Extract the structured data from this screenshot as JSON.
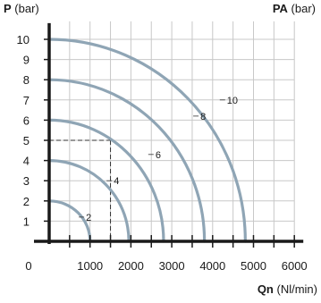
{
  "chart_data": {
    "type": "line",
    "y_axis": {
      "symbol": "P",
      "unit": "(bar)",
      "range": [
        0,
        10.8
      ],
      "ticks": [
        1,
        2,
        3,
        4,
        5,
        6,
        7,
        8,
        9,
        10
      ]
    },
    "y_axis_right": {
      "symbol": "PA",
      "unit": "(bar)"
    },
    "x_axis": {
      "symbol": "Qn",
      "unit": "(Nl/min)",
      "range": [
        0,
        6000
      ],
      "ticks": [
        0,
        1000,
        2000,
        3000,
        4000,
        5000,
        6000
      ]
    },
    "grid": true,
    "series": [
      {
        "name": "2",
        "pressure": 2,
        "max_flow": 1000
      },
      {
        "name": "4",
        "pressure": 4,
        "max_flow": 1950
      },
      {
        "name": "6",
        "pressure": 6,
        "max_flow": 2800
      },
      {
        "name": "8",
        "pressure": 8,
        "max_flow": 3800
      },
      {
        "name": "10",
        "pressure": 10,
        "max_flow": 4800
      }
    ],
    "series_label_points": [
      {
        "name": "2",
        "x": 900,
        "y": 1.2
      },
      {
        "name": "4",
        "x": 1580,
        "y": 3.0
      },
      {
        "name": "6",
        "x": 2600,
        "y": 4.3
      },
      {
        "name": "8",
        "x": 3700,
        "y": 6.2
      },
      {
        "name": "10",
        "x": 4350,
        "y": 7.0
      }
    ],
    "reference_point": {
      "x": 1500,
      "y": 5
    },
    "colors": {
      "curve": "#8fa5b5",
      "axis": "#1a1a1a",
      "grid": "#c8c8c8",
      "reference": "#333333"
    }
  }
}
